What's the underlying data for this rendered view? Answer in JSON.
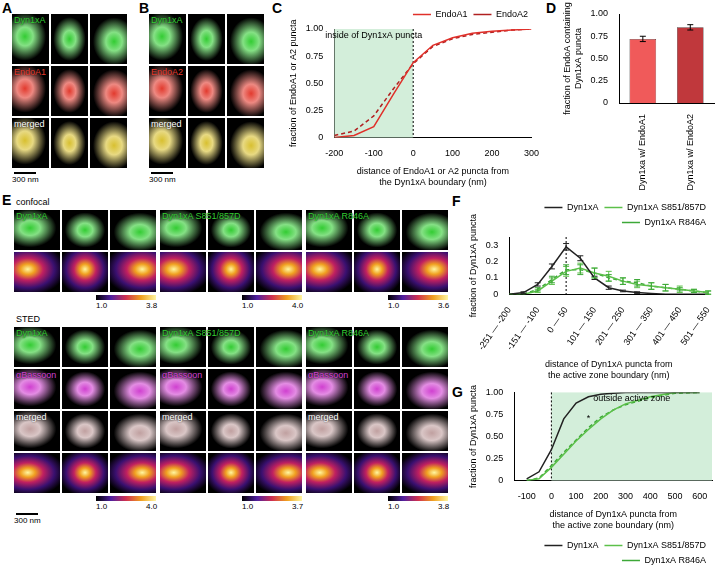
{
  "image_panels": [
    {
      "panel": "A",
      "rows": [
        {
          "label": "Dyn1xA",
          "color": "#33cc33"
        },
        {
          "label": "EndoA1",
          "color": "#e23a2e"
        },
        {
          "label": "merged",
          "color": "#d8c030"
        }
      ],
      "scale_bar": "300 nm"
    },
    {
      "panel": "B",
      "rows": [
        {
          "label": "Dyn1xA",
          "color": "#33cc33"
        },
        {
          "label": "EndoA2",
          "color": "#e23a2e"
        },
        {
          "label": "merged",
          "color": "#d8c030"
        }
      ],
      "scale_bar": "300 nm"
    },
    {
      "panel": "E",
      "scale_bar": "300 nm",
      "sections": [
        {
          "title": "confocal",
          "groups": [
            {
              "rows": [
                {
                  "label": "Dyn1xA",
                  "color": "#33cc33"
                },
                {
                  "color": "heat"
                }
              ],
              "colorbar_labels": [
                "1.0",
                "3.8"
              ]
            },
            {
              "rows": [
                {
                  "label": "Dyn1xA S851/857D",
                  "color": "#33cc33"
                },
                {
                  "color": "heat"
                }
              ],
              "colorbar_labels": [
                "1.0",
                "4.0"
              ]
            },
            {
              "rows": [
                {
                  "label": "Dyn1xA R846A",
                  "color": "#33cc33"
                },
                {
                  "color": "heat"
                }
              ],
              "colorbar_labels": [
                "1.0",
                "3.6"
              ]
            }
          ]
        },
        {
          "title": "STED",
          "groups": [
            {
              "rows": [
                {
                  "label": "Dyn1xA",
                  "color": "#33cc33"
                },
                {
                  "label": "αBassoon",
                  "color": "#d040d0"
                },
                {
                  "label": "merged",
                  "color": "#c0a0a0"
                },
                {
                  "color": "heat"
                }
              ],
              "colorbar_labels": [
                "1.0",
                "4.0"
              ]
            },
            {
              "rows": [
                {
                  "label": "Dyn1xA S851/857D",
                  "color": "#33cc33"
                },
                {
                  "label": "αBassoon",
                  "color": "#d040d0"
                },
                {
                  "label": "merged",
                  "color": "#c0a0a0"
                },
                {
                  "color": "heat"
                }
              ],
              "colorbar_labels": [
                "1.0",
                "3.7"
              ]
            },
            {
              "rows": [
                {
                  "label": "Dyn1xA R846A",
                  "color": "#33cc33"
                },
                {
                  "label": "αBassoon",
                  "color": "#d040d0"
                },
                {
                  "label": "merged",
                  "color": "#c0a0a0"
                },
                {
                  "color": "heat"
                }
              ],
              "colorbar_labels": [
                "1.0",
                "3.8"
              ]
            }
          ]
        }
      ]
    }
  ],
  "chart_data": [
    {
      "panel": "C",
      "type": "line",
      "x_label": [
        "distance of EndoA1 or A2 puncta from",
        "the Dyn1xA boundary (nm)"
      ],
      "y_label": "fraction of EndoA1 or A2 puncta",
      "x": [
        -200,
        -150,
        -100,
        -50,
        0,
        50,
        100,
        150,
        200,
        250,
        300
      ],
      "series": [
        {
          "name": "EndoA1",
          "color": "#e0302a",
          "line_style": "solid",
          "values": [
            0,
            0.02,
            0.1,
            0.4,
            0.69,
            0.85,
            0.92,
            0.96,
            0.98,
            0.99,
            1
          ]
        },
        {
          "name": "EndoA2",
          "color": "#b02020",
          "line_style": "dashed",
          "values": [
            0.02,
            0.06,
            0.2,
            0.45,
            0.68,
            0.84,
            0.91,
            0.95,
            0.97,
            0.99,
            1
          ]
        }
      ],
      "xlim": [
        -200,
        300
      ],
      "xticks": [
        -200,
        -100,
        0,
        100,
        200,
        300
      ],
      "ylim": [
        0,
        1
      ],
      "yticks": [
        0,
        0.25,
        {
          "value": 0.5,
          "label": "0.50"
        },
        {
          "value": 0.75,
          "label": "0.75"
        },
        {
          "value": 1,
          "label": "1.00"
        }
      ],
      "region": [
        -200,
        0
      ],
      "vline": 0,
      "annotations": [
        {
          "text": "inside of Dyn1xA puncta",
          "x": -100,
          "y": 1
        }
      ],
      "legend": "top-right",
      "grid": false
    },
    {
      "panel": "D",
      "type": "bar",
      "y_label": [
        "fraction of EndoA containing",
        "Dyn1xA puncta"
      ],
      "categories": [
        "Dyn1xa w/ EndoA1",
        "Dyn1xa w/ EndoA2"
      ],
      "values": [
        0.72,
        0.85
      ],
      "errors": [
        0.03,
        0.03
      ],
      "colors": [
        "#f05a5a",
        "#c0383c"
      ],
      "ylim": [
        0,
        1
      ],
      "yticks": [
        0,
        0.25,
        {
          "value": 0.5,
          "label": "0.50"
        },
        {
          "value": 0.75,
          "label": "0.75"
        },
        {
          "value": 1,
          "label": "1.00"
        }
      ],
      "grid": false
    },
    {
      "panel": "F",
      "type": "line",
      "x_label": [
        "distance of Dyn1xA puncta from",
        "the active zone boundary (nm)"
      ],
      "y_label": "fraction of Dyn1xA puncta",
      "categories": [
        "-251 — -200",
        null,
        "-151 — -100",
        null,
        "0 — 50",
        null,
        "101 — 150",
        null,
        "201 — 250",
        null,
        "301 — 350",
        null,
        "401 — 450",
        null,
        "501 — 550"
      ],
      "series": [
        {
          "name": "Dyn1xA",
          "color": "#222222",
          "line_style": "solid",
          "values": [
            0,
            0.01,
            0.06,
            0.17,
            0.29,
            0.22,
            0.1,
            0.04,
            0.02,
            0.01,
            0.005,
            0,
            0,
            0,
            0
          ],
          "errors": [
            0,
            0.005,
            0.01,
            0.015,
            0.02,
            0.015,
            0.01,
            0.01,
            0.005,
            0.005,
            0,
            0,
            0,
            0,
            0
          ]
        },
        {
          "name": "Dyn1xA S851/857D",
          "color": "#5cc04a",
          "line_style": "solid",
          "values": [
            0,
            0,
            0.02,
            0.08,
            0.14,
            0.16,
            0.13,
            0.11,
            0.08,
            0.06,
            0.05,
            0.04,
            0.03,
            0.02,
            0.01
          ],
          "errors": [
            0,
            0,
            0.01,
            0.02,
            0.03,
            0.03,
            0.03,
            0.03,
            0.02,
            0.02,
            0.02,
            0.02,
            0.02,
            0.01,
            0.01
          ]
        },
        {
          "name": "Dyn1xA R846A",
          "color": "#3da838",
          "line_style": "dashed",
          "values": [
            0,
            0,
            0.03,
            0.09,
            0.15,
            0.15,
            0.13,
            0.1,
            0.08,
            0.07,
            0.05,
            0.04,
            0.03,
            0.02,
            0.01
          ],
          "errors": [
            0,
            0,
            0.01,
            0.02,
            0.03,
            0.03,
            0.03,
            0.02,
            0.02,
            0.02,
            0.02,
            0.02,
            0.01,
            0.01,
            0.01
          ]
        }
      ],
      "ylim": [
        0,
        0.35
      ],
      "yticks": [
        0,
        0.1,
        0.2,
        0.3
      ],
      "vline": "0 — 50",
      "legend": "top-right",
      "grid": false
    },
    {
      "panel": "G",
      "type": "line",
      "x_label": [
        "distance of Dyn1xA puncta from",
        "the active zone boundary (nm)"
      ],
      "y_label": "fraction of Dyn1xA puncta",
      "x": [
        -100,
        -50,
        0,
        50,
        100,
        150,
        200,
        250,
        300,
        400,
        500,
        600
      ],
      "series": [
        {
          "name": "Dyn1xA",
          "color": "#222222",
          "line_style": "solid",
          "values": [
            0.02,
            0.1,
            0.35,
            0.7,
            0.88,
            0.95,
            0.98,
            0.99,
            1,
            1,
            1,
            1
          ]
        },
        {
          "name": "Dyn1xA S851/857D",
          "color": "#5cc04a",
          "line_style": "solid",
          "values": [
            0,
            0.02,
            0.15,
            0.3,
            0.45,
            0.58,
            0.7,
            0.8,
            0.87,
            0.95,
            1,
            1
          ]
        },
        {
          "name": "Dyn1xA R846A",
          "color": "#3da838",
          "line_style": "dashed",
          "values": [
            0,
            0.03,
            0.17,
            0.32,
            0.46,
            0.6,
            0.72,
            0.8,
            0.86,
            0.94,
            0.99,
            1
          ]
        }
      ],
      "xlim": [
        -150,
        650
      ],
      "xticks": [
        -100,
        0,
        100,
        200,
        300,
        400,
        500,
        600
      ],
      "ylim": [
        0,
        1
      ],
      "yticks": [
        0,
        0.25,
        {
          "value": 0.5,
          "label": "0.50"
        },
        {
          "value": 0.75,
          "label": "0.75"
        },
        {
          "value": 1,
          "label": "1.00"
        }
      ],
      "region": [
        0,
        650
      ],
      "vline": 0,
      "annotations": [
        {
          "text": "outside active zone",
          "x": 325,
          "y": 1
        },
        {
          "text": "*",
          "x": 150,
          "y": 0.78
        }
      ],
      "legend": "bottom-right",
      "grid": false
    }
  ]
}
